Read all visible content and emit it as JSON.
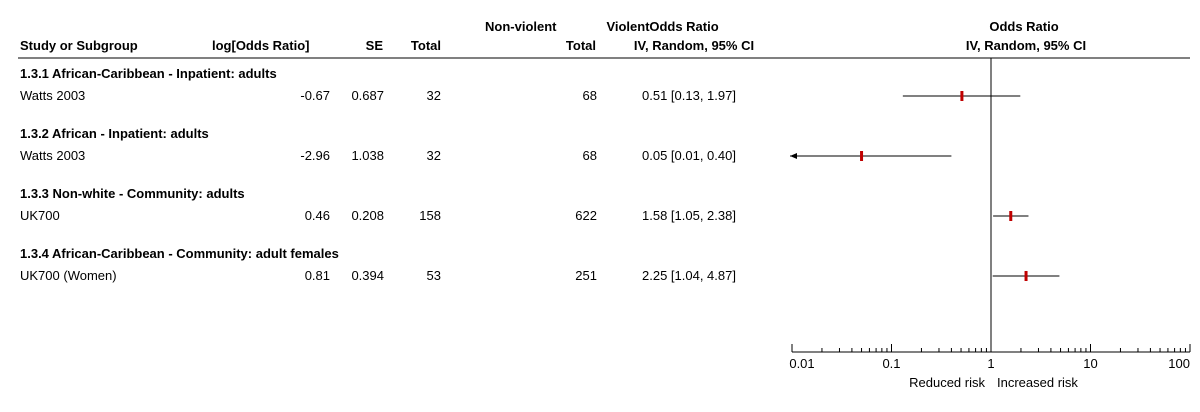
{
  "header": {
    "col_study": "Study or Subgroup",
    "col_logor": "log[Odds Ratio]",
    "col_se": "SE",
    "col_violent": [
      "Violent",
      "Total"
    ],
    "col_nonviolent": [
      "Non-violent",
      "Total"
    ],
    "col_or_text": [
      "Odds Ratio",
      "IV, Random, 95% CI"
    ],
    "col_or_plot": [
      "Odds Ratio",
      "IV, Random, 95% CI"
    ]
  },
  "chart_data": {
    "type": "forest",
    "scale": "log",
    "xlim": [
      0.01,
      100
    ],
    "xticks": [
      {
        "value": 0.01,
        "label": "0.01"
      },
      {
        "value": 0.1,
        "label": "0.1"
      },
      {
        "value": 1,
        "label": "1"
      },
      {
        "value": 10,
        "label": "10"
      },
      {
        "value": 100,
        "label": "100"
      }
    ],
    "reference_line": 1,
    "left_label": "Reduced risk",
    "right_label": "Increased risk",
    "groups": [
      {
        "title": "1.3.1 African-Caribbean - Inpatient: adults",
        "studies": [
          {
            "name": "Watts 2003",
            "log_or": "-0.67",
            "se": "0.687",
            "violent_total": "32",
            "nonviolent_total": "68",
            "ci_text": "0.51 [0.13, 1.97]",
            "or": 0.51,
            "lo": 0.13,
            "hi": 1.97
          }
        ]
      },
      {
        "title": "1.3.2 African - Inpatient: adults",
        "studies": [
          {
            "name": "Watts 2003",
            "log_or": "-2.96",
            "se": "1.038",
            "violent_total": "32",
            "nonviolent_total": "68",
            "ci_text": "0.05 [0.01, 0.40]",
            "or": 0.05,
            "lo": 0.01,
            "hi": 0.4
          }
        ]
      },
      {
        "title": "1.3.3 Non-white - Community: adults",
        "studies": [
          {
            "name": "UK700",
            "log_or": "0.46",
            "se": "0.208",
            "violent_total": "158",
            "nonviolent_total": "622",
            "ci_text": "1.58 [1.05, 2.38]",
            "or": 1.58,
            "lo": 1.05,
            "hi": 2.38
          }
        ]
      },
      {
        "title": "1.3.4 African-Caribbean - Community: adult females",
        "studies": [
          {
            "name": "UK700 (Women)",
            "log_or": "0.81",
            "se": "0.394",
            "violent_total": "53",
            "nonviolent_total": "251",
            "ci_text": "2.25 [1.04, 4.87]",
            "or": 2.25,
            "lo": 1.04,
            "hi": 4.87
          }
        ]
      }
    ],
    "colors": {
      "point": "#c00000",
      "line": "#000000"
    }
  }
}
